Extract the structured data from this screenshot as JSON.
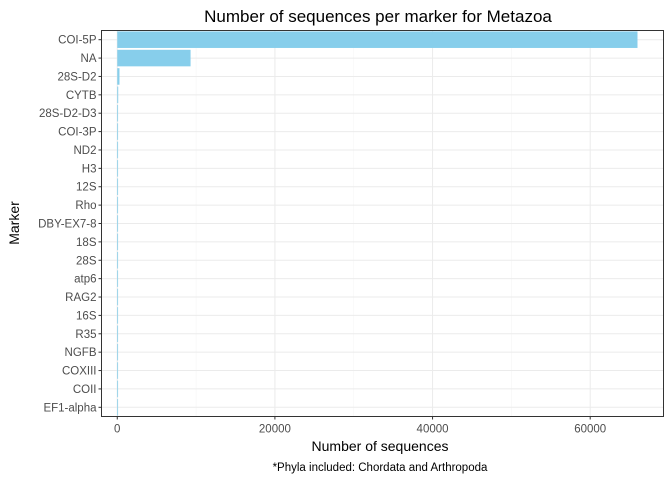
{
  "chart_data": {
    "type": "bar",
    "orientation": "horizontal",
    "title": "Number of sequences per marker for Metazoa",
    "xlabel": "Number of sequences",
    "ylabel": "Marker",
    "caption": "*Phyla included: Chordata and Arthropoda",
    "categories": [
      "COI-5P",
      "NA",
      "28S-D2",
      "CYTB",
      "28S-D2-D3",
      "COI-3P",
      "ND2",
      "H3",
      "12S",
      "Rho",
      "DBY-EX7-8",
      "18S",
      "28S",
      "atp6",
      "RAG2",
      "16S",
      "R35",
      "NGFB",
      "COXIII",
      "COII",
      "EF1-alpha"
    ],
    "values": [
      66000,
      9300,
      280,
      120,
      90,
      70,
      30,
      20,
      15,
      12,
      10,
      9,
      8,
      7,
      6,
      5,
      4,
      3,
      2,
      2,
      1
    ],
    "xlim": [
      -2000,
      69300
    ],
    "xticks": [
      0,
      20000,
      40000,
      60000
    ],
    "bar_color": "#87ceeb",
    "grid": true,
    "legend": "none"
  }
}
